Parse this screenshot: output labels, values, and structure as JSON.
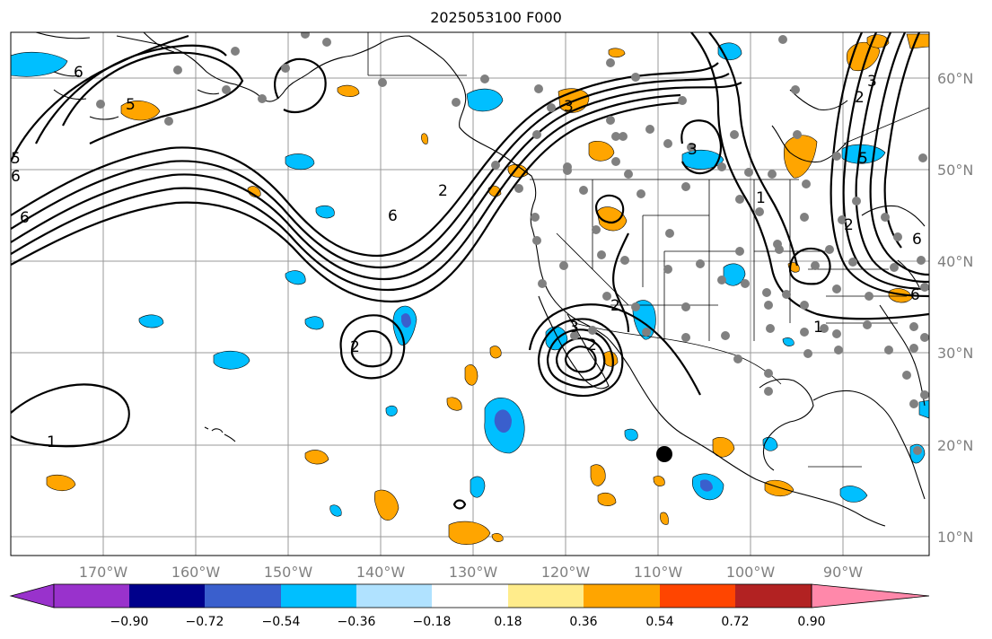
{
  "title": "2025053100 F000",
  "map": {
    "lat_labels": [
      "60°N",
      "50°N",
      "40°N",
      "30°N",
      "20°N",
      "10°N"
    ],
    "lon_labels": [
      "170°W",
      "160°W",
      "150°W",
      "140°W",
      "130°W",
      "120°W",
      "110°W",
      "100°W",
      "90°W"
    ],
    "contour_labels": [
      "6",
      "5",
      "6",
      "6",
      "5",
      "6",
      "2",
      "3",
      "2",
      "1",
      "2",
      "3",
      "1",
      "6",
      "5",
      "3",
      "2",
      "6",
      "2",
      "3",
      "1",
      "2"
    ],
    "land_color": "#ffffff",
    "grid_color": "#9a9a9a",
    "station_color": "#808080"
  },
  "colorbar": {
    "labels": [
      "−0.90",
      "−0.72",
      "−0.54",
      "−0.36",
      "−0.18",
      "0.18",
      "0.36",
      "0.54",
      "0.72",
      "0.90"
    ],
    "colors": [
      "#9932cc",
      "#00008b",
      "#3a5fcd",
      "#00bfff",
      "#b0e2ff",
      "#ffffff",
      "#ffec8b",
      "#ffa500",
      "#ff4500",
      "#b22222",
      "#ff88aa"
    ]
  }
}
